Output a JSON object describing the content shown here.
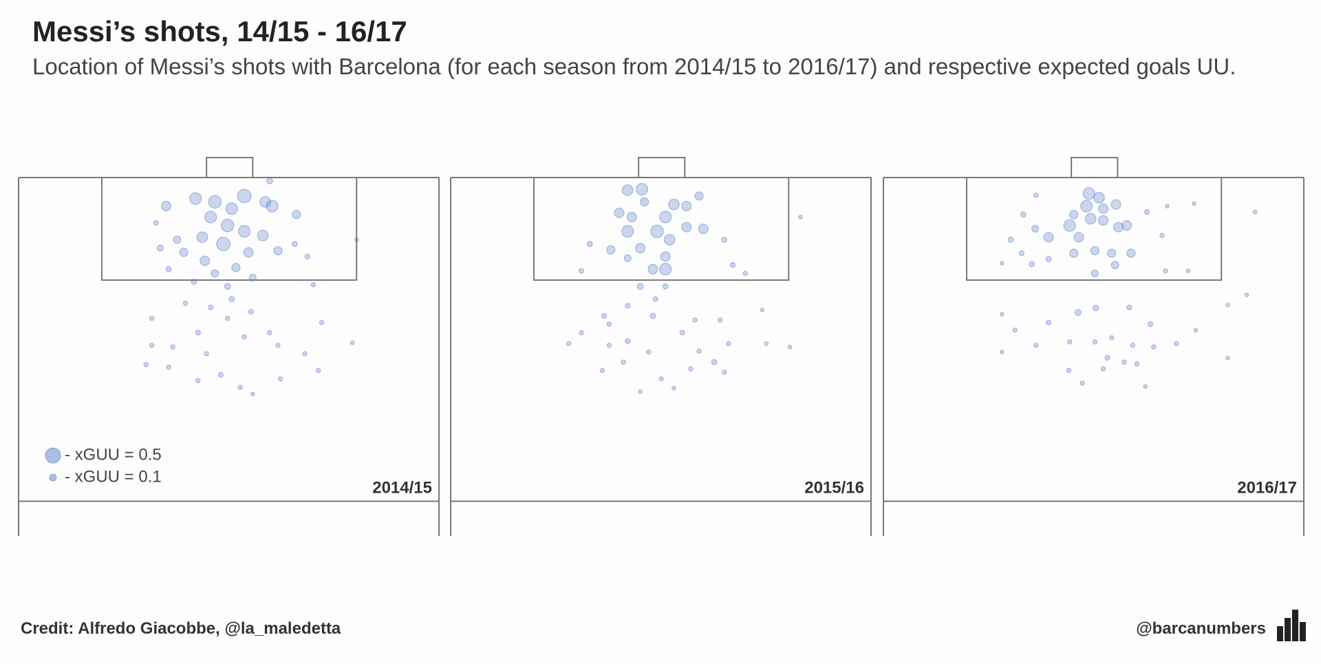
{
  "title": "Messi’s shots, 14/15 - 16/17",
  "subtitle": "Location of Messi’s shots with Barcelona (for each season from 2014/15 to 2016/17) and respective expected goals UU.",
  "credit": "Credit: Alfredo Giacobbe, @la_maledetta",
  "handle": "@barcanumbers",
  "size_legend": [
    {
      "label": "- xGUU = 0.5",
      "size": 0.5
    },
    {
      "label": "- xGUU = 0.1",
      "size": 0.1
    }
  ],
  "chart_data": [
    {
      "type": "scatter",
      "label": "2014/15",
      "color": "#5b7fc7",
      "xlim": [
        0,
        100
      ],
      "ylim": [
        77,
        0
      ],
      "x": [
        53.7,
        46.7,
        42.1,
        35.1,
        58.7,
        60.3,
        50.7,
        45.7,
        49.7,
        53.7,
        48.7,
        43.7,
        58.1,
        61.7,
        54.7,
        37.7,
        39.3,
        44.3,
        51.7,
        46.7,
        49.7,
        55.7,
        33.7,
        66.1,
        65.7,
        68.7,
        59.7,
        32.7,
        35.7,
        41.7,
        31.7,
        42.7,
        49.7,
        55.3,
        72.1,
        31.7,
        36.7,
        44.7,
        53.7,
        61.7,
        68.1,
        79.4,
        30.3,
        35.7,
        42.7,
        48.1,
        52.7,
        55.7,
        62.3,
        71.3,
        45.7,
        50.7,
        39.7,
        59.7,
        80.4,
        70.1
      ],
      "y": [
        4.4,
        5.8,
        5.0,
        6.8,
        5.8,
        6.8,
        7.4,
        9.4,
        11.4,
        12.8,
        15.8,
        14.2,
        13.8,
        17.4,
        17.8,
        14.8,
        17.8,
        19.8,
        21.4,
        22.8,
        25.9,
        23.8,
        16.8,
        8.8,
        15.8,
        18.8,
        0.8,
        10.8,
        21.8,
        24.8,
        33.5,
        36.9,
        33.5,
        31.9,
        34.5,
        39.9,
        40.3,
        41.9,
        37.9,
        39.9,
        41.9,
        39.3,
        44.5,
        45.1,
        48.3,
        46.9,
        49.9,
        51.5,
        47.9,
        45.9,
        30.9,
        28.9,
        29.9,
        36.9,
        14.8,
        25.5
      ],
      "sizes": [
        0.4,
        0.35,
        0.3,
        0.2,
        0.25,
        0.3,
        0.3,
        0.3,
        0.35,
        0.3,
        0.4,
        0.25,
        0.25,
        0.15,
        0.2,
        0.12,
        0.15,
        0.2,
        0.15,
        0.12,
        0.08,
        0.1,
        0.08,
        0.15,
        0.06,
        0.05,
        0.08,
        0.05,
        0.06,
        0.06,
        0.04,
        0.05,
        0.04,
        0.05,
        0.04,
        0.04,
        0.04,
        0.04,
        0.04,
        0.04,
        0.04,
        0.03,
        0.04,
        0.04,
        0.04,
        0.05,
        0.04,
        0.03,
        0.04,
        0.04,
        0.05,
        0.06,
        0.04,
        0.04,
        0.03,
        0.04
      ]
    },
    {
      "type": "scatter",
      "label": "2015/16",
      "color": "#5b7fc7",
      "xlim": [
        0,
        100
      ],
      "ylim": [
        77,
        0
      ],
      "x": [
        45.5,
        42.1,
        46.1,
        40.1,
        43.1,
        53.1,
        56.1,
        59.1,
        51.1,
        42.1,
        49.1,
        52.1,
        56.1,
        60.1,
        38.1,
        45.1,
        51.1,
        48.1,
        51.1,
        42.1,
        33.1,
        31.1,
        65.1,
        67.1,
        70.1,
        83.2,
        45.1,
        51.1,
        36.5,
        42.1,
        48.1,
        48.7,
        37.7,
        58.1,
        64.1,
        74.1,
        28.1,
        31.1,
        37.7,
        42.1,
        47.1,
        55.1,
        59.1,
        62.7,
        66.1,
        80.7,
        36.1,
        41.1,
        45.1,
        50.1,
        53.1,
        57.1,
        65.1,
        75.1
      ],
      "y": [
        2.8,
        3.0,
        5.8,
        8.4,
        9.4,
        6.4,
        6.8,
        4.4,
        9.4,
        12.8,
        12.8,
        14.8,
        11.8,
        12.2,
        17.2,
        16.8,
        18.8,
        21.8,
        21.8,
        19.2,
        15.8,
        22.2,
        14.8,
        20.8,
        22.8,
        9.4,
        25.9,
        25.9,
        32.9,
        30.5,
        32.9,
        28.9,
        34.9,
        33.9,
        33.9,
        31.5,
        39.5,
        36.9,
        39.9,
        38.9,
        41.5,
        36.9,
        41.3,
        43.9,
        39.5,
        40.3,
        45.9,
        43.9,
        50.9,
        47.9,
        50.1,
        45.5,
        46.3,
        39.5
      ],
      "sizes": [
        0.3,
        0.25,
        0.15,
        0.2,
        0.2,
        0.25,
        0.2,
        0.15,
        0.3,
        0.3,
        0.35,
        0.25,
        0.2,
        0.2,
        0.15,
        0.2,
        0.2,
        0.2,
        0.3,
        0.1,
        0.06,
        0.05,
        0.06,
        0.05,
        0.04,
        0.03,
        0.08,
        0.06,
        0.05,
        0.05,
        0.06,
        0.05,
        0.04,
        0.04,
        0.04,
        0.03,
        0.04,
        0.04,
        0.04,
        0.05,
        0.04,
        0.05,
        0.04,
        0.06,
        0.04,
        0.03,
        0.04,
        0.04,
        0.03,
        0.04,
        0.03,
        0.04,
        0.04,
        0.03
      ]
    },
    {
      "type": "scatter",
      "label": "2016/17",
      "color": "#5b7fc7",
      "xlim": [
        0,
        100
      ],
      "ylim": [
        77,
        0
      ],
      "x": [
        48.9,
        51.3,
        48.3,
        52.3,
        55.3,
        45.3,
        49.3,
        44.3,
        52.3,
        57.9,
        55.9,
        39.3,
        46.5,
        45.3,
        50.3,
        54.3,
        58.9,
        36.1,
        33.3,
        30.3,
        32.9,
        35.3,
        39.3,
        50.3,
        55.1,
        36.3,
        62.7,
        67.5,
        73.9,
        88.4,
        66.3,
        67.1,
        72.5,
        28.2,
        46.3,
        50.5,
        39.3,
        58.5,
        63.5,
        28.2,
        31.3,
        36.3,
        44.3,
        50.3,
        54.3,
        59.3,
        64.3,
        69.7,
        74.3,
        81.9,
        86.4,
        28.2,
        44.1,
        53.3,
        57.3,
        60.3,
        47.3,
        52.3,
        62.3,
        81.9
      ],
      "y": [
        3.8,
        4.8,
        6.8,
        7.4,
        6.4,
        8.8,
        9.8,
        11.4,
        10.2,
        11.4,
        11.8,
        14.2,
        14.2,
        18.0,
        17.4,
        18.0,
        18.0,
        12.2,
        8.8,
        14.8,
        18.0,
        20.6,
        19.4,
        22.8,
        20.8,
        4.2,
        8.2,
        6.8,
        6.2,
        8.2,
        13.8,
        22.2,
        22.2,
        20.4,
        32.1,
        31.0,
        34.5,
        30.9,
        34.9,
        32.5,
        36.3,
        39.9,
        39.1,
        39.1,
        38.1,
        39.9,
        40.3,
        39.5,
        36.3,
        30.3,
        27.9,
        41.5,
        45.9,
        42.9,
        43.9,
        44.3,
        48.9,
        45.5,
        49.7,
        42.9
      ],
      "sizes": [
        0.3,
        0.25,
        0.3,
        0.2,
        0.2,
        0.15,
        0.25,
        0.3,
        0.2,
        0.2,
        0.2,
        0.2,
        0.2,
        0.15,
        0.15,
        0.15,
        0.15,
        0.1,
        0.06,
        0.06,
        0.05,
        0.06,
        0.06,
        0.1,
        0.12,
        0.04,
        0.05,
        0.03,
        0.03,
        0.03,
        0.04,
        0.04,
        0.03,
        0.03,
        0.08,
        0.07,
        0.05,
        0.05,
        0.05,
        0.03,
        0.04,
        0.04,
        0.04,
        0.04,
        0.04,
        0.04,
        0.04,
        0.04,
        0.03,
        0.03,
        0.03,
        0.03,
        0.04,
        0.05,
        0.04,
        0.04,
        0.04,
        0.04,
        0.03,
        0.03
      ]
    }
  ]
}
